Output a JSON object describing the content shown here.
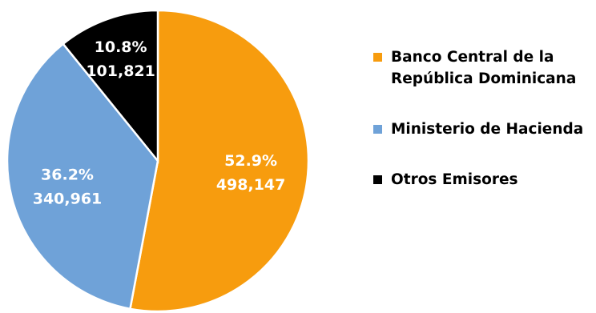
{
  "chart_data": {
    "type": "pie",
    "title": "",
    "start_angle_deg": 0,
    "direction": "clockwise",
    "legend_position": "right",
    "slices": [
      {
        "name": "Banco Central de la República Dominicana",
        "percent_label": "52.9%",
        "value_label": "498,147",
        "value": 498147,
        "color": "#f79c0e"
      },
      {
        "name": "Ministerio de Hacienda",
        "percent_label": "36.2%",
        "value_label": "340,961",
        "value": 340961,
        "color": "#6fa2d8"
      },
      {
        "name": "Otros Emisores",
        "percent_label": "10.8%",
        "value_label": "101,821",
        "value": 101821,
        "color": "#000000"
      }
    ]
  },
  "legend": {
    "items": [
      {
        "label": "Banco Central de la República Dominicana",
        "color": "#f79c0e"
      },
      {
        "label": "Ministerio de Hacienda",
        "color": "#6fa2d8"
      },
      {
        "label": "Otros Emisores",
        "color": "#000000"
      }
    ]
  }
}
